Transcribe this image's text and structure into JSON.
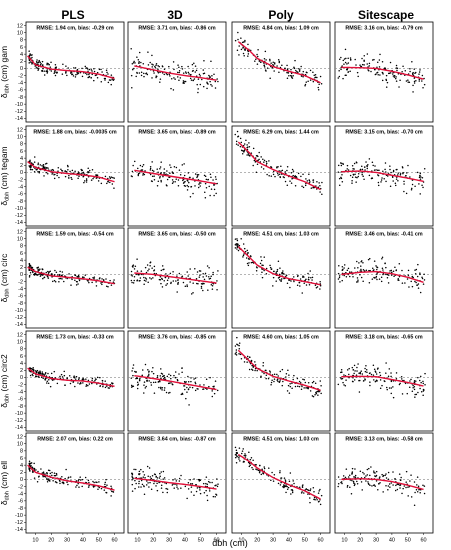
{
  "figure": {
    "columns": [
      "PLS",
      "3D",
      "Poly",
      "Sitescape"
    ],
    "rows": [
      "gam",
      "tegam",
      "circ",
      "circ2",
      "ell"
    ],
    "ylabel_symbol": "δ",
    "ylabel_sub": "dbh",
    "ylabel_unit": "(cm)",
    "xlabel": "dbh (cm)",
    "yticks": [
      12,
      10,
      8,
      6,
      4,
      2,
      0,
      -2,
      -4,
      -6,
      -8,
      -10,
      -12,
      -14
    ],
    "xticks": [
      10,
      20,
      30,
      40,
      50,
      60
    ],
    "colors": {
      "points": "#000000",
      "fit": "#e0103a",
      "zero": "#888888"
    }
  },
  "chart_data": [
    {
      "row": "gam",
      "col": "PLS",
      "type": "scatter",
      "annotation": "RMSE: 1.94 cm, bias: -0.29 cm",
      "rmse": 1.94,
      "bias": -0.29,
      "xlim": [
        4,
        66
      ],
      "ylim": [
        -15,
        13
      ],
      "trend": {
        "x": [
          5,
          10,
          20,
          30,
          40,
          50,
          60
        ],
        "y": [
          3.5,
          1.0,
          -0.2,
          -0.6,
          -0.9,
          -1.6,
          -2.8
        ]
      },
      "spread": 1.6
    },
    {
      "row": "gam",
      "col": "3D",
      "type": "scatter",
      "annotation": "RMSE: 3.71 cm, bias: -0.86 cm",
      "rmse": 3.71,
      "bias": -0.86,
      "xlim": [
        4,
        66
      ],
      "ylim": [
        -15,
        13
      ],
      "trend": {
        "x": [
          8,
          20,
          30,
          40,
          50,
          60
        ],
        "y": [
          0.7,
          -0.4,
          -1.3,
          -2.0,
          -2.6,
          -3.3
        ]
      },
      "spread": 3.2
    },
    {
      "row": "gam",
      "col": "Poly",
      "type": "scatter",
      "annotation": "RMSE: 4.84 cm, bias: 1.09 cm",
      "rmse": 4.84,
      "bias": 1.09,
      "xlim": [
        4,
        66
      ],
      "ylim": [
        -15,
        13
      ],
      "trend": {
        "x": [
          8,
          15,
          20,
          30,
          40,
          50,
          60
        ],
        "y": [
          7.5,
          5.0,
          2.8,
          0.5,
          -0.8,
          -2.0,
          -4.0
        ]
      },
      "spread": 2.6
    },
    {
      "row": "gam",
      "col": "Sitescape",
      "type": "scatter",
      "annotation": "RMSE: 3.16 cm, bias: -0.79 cm",
      "rmse": 3.16,
      "bias": -0.79,
      "xlim": [
        4,
        66
      ],
      "ylim": [
        -15,
        13
      ],
      "trend": {
        "x": [
          8,
          20,
          30,
          40,
          50,
          60
        ],
        "y": [
          0.3,
          0.2,
          0.0,
          -0.8,
          -1.8,
          -3.0
        ]
      },
      "spread": 3.0
    },
    {
      "row": "tegam",
      "col": "PLS",
      "type": "scatter",
      "annotation": "RMSE: 1.88 cm, bias: -0.0035 cm",
      "rmse": 1.88,
      "bias": -0.0035,
      "xlim": [
        4,
        66
      ],
      "ylim": [
        -15,
        13
      ],
      "trend": {
        "x": [
          5,
          10,
          20,
          30,
          40,
          50,
          60
        ],
        "y": [
          3.0,
          1.4,
          0.2,
          -0.3,
          -0.7,
          -1.3,
          -2.6
        ]
      },
      "spread": 1.6
    },
    {
      "row": "tegam",
      "col": "3D",
      "type": "scatter",
      "annotation": "RMSE: 3.65 cm, bias: -0.89 cm",
      "rmse": 3.65,
      "bias": -0.89,
      "xlim": [
        4,
        66
      ],
      "ylim": [
        -15,
        13
      ],
      "trend": {
        "x": [
          8,
          20,
          30,
          40,
          50,
          60
        ],
        "y": [
          0.6,
          -0.3,
          -1.0,
          -1.7,
          -2.4,
          -3.2
        ]
      },
      "spread": 3.1
    },
    {
      "row": "tegam",
      "col": "Poly",
      "type": "scatter",
      "annotation": "RMSE: 6.29 cm, bias: 1.44 cm",
      "rmse": 6.29,
      "bias": 1.44,
      "xlim": [
        4,
        66
      ],
      "ylim": [
        -15,
        13
      ],
      "trend": {
        "x": [
          8,
          15,
          20,
          30,
          40,
          50,
          60
        ],
        "y": [
          8.5,
          5.5,
          3.0,
          0.8,
          -1.0,
          -2.6,
          -4.8
        ]
      },
      "spread": 2.8
    },
    {
      "row": "tegam",
      "col": "Sitescape",
      "type": "scatter",
      "annotation": "RMSE: 3.15 cm, bias: -0.70 cm",
      "rmse": 3.15,
      "bias": -0.7,
      "xlim": [
        4,
        66
      ],
      "ylim": [
        -15,
        13
      ],
      "trend": {
        "x": [
          8,
          20,
          30,
          40,
          50,
          60
        ],
        "y": [
          0.2,
          0.4,
          0.0,
          -0.8,
          -1.6,
          -2.5
        ]
      },
      "spread": 3.0
    },
    {
      "row": "circ",
      "col": "PLS",
      "type": "scatter",
      "annotation": "RMSE: 1.59 cm, bias: -0.54 cm",
      "rmse": 1.59,
      "bias": -0.54,
      "xlim": [
        4,
        66
      ],
      "ylim": [
        -15,
        13
      ],
      "trend": {
        "x": [
          5,
          10,
          20,
          30,
          40,
          50,
          60
        ],
        "y": [
          2.0,
          0.8,
          -0.4,
          -0.8,
          -1.2,
          -1.8,
          -2.6
        ]
      },
      "spread": 1.3
    },
    {
      "row": "circ",
      "col": "3D",
      "type": "scatter",
      "annotation": "RMSE: 3.65 cm, bias: -0.50 cm",
      "rmse": 3.65,
      "bias": -0.5,
      "xlim": [
        4,
        66
      ],
      "ylim": [
        -15,
        13
      ],
      "trend": {
        "x": [
          8,
          20,
          30,
          40,
          50,
          60
        ],
        "y": [
          0.4,
          0.0,
          -0.6,
          -1.2,
          -1.8,
          -2.4
        ]
      },
      "spread": 3.1
    },
    {
      "row": "circ",
      "col": "Poly",
      "type": "scatter",
      "annotation": "RMSE: 4.51 cm, bias: 1.03 cm",
      "rmse": 4.51,
      "bias": 1.03,
      "xlim": [
        4,
        66
      ],
      "ylim": [
        -15,
        13
      ],
      "trend": {
        "x": [
          8,
          15,
          20,
          30,
          40,
          50,
          60
        ],
        "y": [
          7.8,
          4.8,
          2.6,
          0.2,
          -1.2,
          -2.0,
          -2.9
        ]
      },
      "spread": 2.6
    },
    {
      "row": "circ",
      "col": "Sitescape",
      "type": "scatter",
      "annotation": "RMSE: 3.46 cm, bias: -0.41 cm",
      "rmse": 3.46,
      "bias": -0.41,
      "xlim": [
        4,
        66
      ],
      "ylim": [
        -15,
        13
      ],
      "trend": {
        "x": [
          8,
          20,
          30,
          40,
          50,
          60
        ],
        "y": [
          0.0,
          0.6,
          0.8,
          0.2,
          -0.8,
          -2.2
        ]
      },
      "spread": 3.2
    },
    {
      "row": "circ2",
      "col": "PLS",
      "type": "scatter",
      "annotation": "RMSE: 1.73 cm, bias: -0.33 cm",
      "rmse": 1.73,
      "bias": -0.33,
      "xlim": [
        4,
        66
      ],
      "ylim": [
        -15,
        13
      ],
      "trend": {
        "x": [
          5,
          10,
          20,
          30,
          40,
          50,
          60
        ],
        "y": [
          2.6,
          1.0,
          -0.3,
          -0.8,
          -1.0,
          -1.6,
          -2.5
        ]
      },
      "spread": 1.4
    },
    {
      "row": "circ2",
      "col": "3D",
      "type": "scatter",
      "annotation": "RMSE: 3.76 cm, bias: -0.85 cm",
      "rmse": 3.76,
      "bias": -0.85,
      "xlim": [
        4,
        66
      ],
      "ylim": [
        -15,
        13
      ],
      "trend": {
        "x": [
          8,
          20,
          30,
          40,
          50,
          60
        ],
        "y": [
          0.5,
          -0.3,
          -1.0,
          -1.8,
          -2.6,
          -3.4
        ]
      },
      "spread": 3.1
    },
    {
      "row": "circ2",
      "col": "Poly",
      "type": "scatter",
      "annotation": "RMSE: 4.60 cm, bias: 1.05 cm",
      "rmse": 4.6,
      "bias": 1.05,
      "xlim": [
        4,
        66
      ],
      "ylim": [
        -15,
        13
      ],
      "trend": {
        "x": [
          8,
          15,
          20,
          30,
          40,
          50,
          60
        ],
        "y": [
          7.6,
          4.6,
          2.5,
          0.3,
          -1.0,
          -2.2,
          -3.6
        ]
      },
      "spread": 2.6
    },
    {
      "row": "circ2",
      "col": "Sitescape",
      "type": "scatter",
      "annotation": "RMSE: 3.18 cm, bias: -0.65 cm",
      "rmse": 3.18,
      "bias": -0.65,
      "xlim": [
        4,
        66
      ],
      "ylim": [
        -15,
        13
      ],
      "trend": {
        "x": [
          8,
          20,
          30,
          40,
          50,
          60
        ],
        "y": [
          0.2,
          0.3,
          0.2,
          -0.6,
          -1.4,
          -2.4
        ]
      },
      "spread": 3.0
    },
    {
      "row": "ell",
      "col": "PLS",
      "type": "scatter",
      "annotation": "RMSE: 2.07 cm, bias: 0.22 cm",
      "rmse": 2.07,
      "bias": 0.22,
      "xlim": [
        4,
        66
      ],
      "ylim": [
        -15,
        13
      ],
      "trend": {
        "x": [
          5,
          10,
          20,
          30,
          40,
          50,
          60
        ],
        "y": [
          4.0,
          2.0,
          0.6,
          -0.4,
          -1.0,
          -1.8,
          -3.0
        ]
      },
      "spread": 1.6
    },
    {
      "row": "ell",
      "col": "3D",
      "type": "scatter",
      "annotation": "RMSE: 3.64 cm, bias: -0.87 cm",
      "rmse": 3.64,
      "bias": -0.87,
      "xlim": [
        4,
        66
      ],
      "ylim": [
        -15,
        13
      ],
      "trend": {
        "x": [
          8,
          20,
          30,
          40,
          50,
          60
        ],
        "y": [
          0.3,
          -0.3,
          -0.9,
          -1.4,
          -2.0,
          -2.7
        ]
      },
      "spread": 3.0
    },
    {
      "row": "ell",
      "col": "Poly",
      "type": "scatter",
      "annotation": "RMSE: 4.51 cm, bias: 1.03 cm",
      "rmse": 4.51,
      "bias": 1.03,
      "xlim": [
        4,
        66
      ],
      "ylim": [
        -15,
        13
      ],
      "trend": {
        "x": [
          8,
          15,
          20,
          30,
          40,
          50,
          60
        ],
        "y": [
          7.0,
          5.0,
          3.2,
          0.5,
          -1.5,
          -3.2,
          -5.5
        ]
      },
      "spread": 2.6
    },
    {
      "row": "ell",
      "col": "Sitescape",
      "type": "scatter",
      "annotation": "RMSE: 3.13 cm, bias: -0.58 cm",
      "rmse": 3.13,
      "bias": -0.58,
      "xlim": [
        4,
        66
      ],
      "ylim": [
        -15,
        13
      ],
      "trend": {
        "x": [
          8,
          20,
          30,
          40,
          50,
          60
        ],
        "y": [
          0.0,
          0.2,
          0.0,
          -0.6,
          -1.6,
          -2.8
        ]
      },
      "spread": 3.0
    }
  ]
}
